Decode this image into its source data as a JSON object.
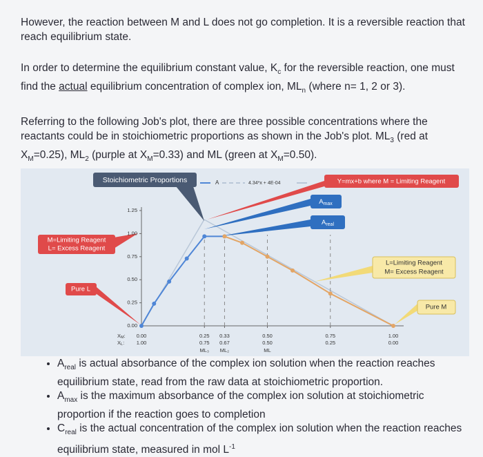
{
  "paragraphs": [
    [
      "However, the reaction between M and L does not go completion.  It is a reversible reaction that reach equilibrium state."
    ],
    [
      "In order to determine the equilibrium constant value, K",
      "c",
      " for the reversible reaction, one must find the ",
      "actual",
      " equilibrium concentration of complex ion, ML",
      "n",
      " (where n= 1, 2 or 3)."
    ],
    [
      "Referring to the following Job's plot, there are three possible concentrations where the reactants could be in stoichiometric proportions as shown in the Job's plot. ML",
      "3",
      " (red at X",
      "M",
      "=0.25), ML",
      "2",
      " (purple at X",
      "M",
      "=0.33) and ML (green at X",
      "M",
      "=0.50)."
    ]
  ],
  "figure": {
    "stoichiometric_callout": "Stoichiometric Proportions",
    "fit_callout": "Y=mx+b where M = Limiting Reagent",
    "amax_callout": [
      "A",
      "max"
    ],
    "areal_callout": [
      "A",
      "real"
    ],
    "left_callout": [
      "M=Limiting Reagent",
      "L= Excess Reagent"
    ],
    "pure_l": "Pure L",
    "right_callout": [
      "L=Limiting Reagent",
      "M= Excess Reagent"
    ],
    "pure_m": "Pure M",
    "legend": [
      "A",
      "4.34*x + 4E-04"
    ],
    "ylim": [
      0,
      1.25
    ],
    "yticks": [
      {
        "value": 0,
        "label": "0.00"
      },
      {
        "value": 0.25,
        "label": "0.25"
      },
      {
        "value": 0.5,
        "label": "0.50"
      },
      {
        "value": 0.75,
        "label": "0.75"
      },
      {
        "value": 1,
        "label": "1.00"
      },
      {
        "value": 1.25,
        "label": "1.25"
      }
    ],
    "xlim": [
      0,
      1
    ],
    "xm_row_label": [
      "X",
      "M",
      ":"
    ],
    "xl_row_label": [
      "X",
      "L",
      ":"
    ],
    "xticks": [
      {
        "value": 0,
        "label": "0.00"
      },
      {
        "value": 0.25,
        "label": "0.25"
      },
      {
        "value": 0.33,
        "label": "0.33"
      },
      {
        "value": 0.5,
        "label": "0.50"
      },
      {
        "value": 0.75,
        "label": "0.75"
      },
      {
        "value": 1,
        "label": "1.00"
      }
    ],
    "xl_labels": [
      "1.00",
      "0.75",
      "0.67",
      "0.50",
      "0.25",
      "0.00"
    ],
    "species": [
      null,
      "ML₃",
      "ML₂",
      "ML",
      null,
      null
    ],
    "series": [
      {
        "color": "#4f86d6",
        "x": [
          0,
          0.05,
          0.11,
          0.18,
          0.25,
          0.33
        ],
        "values": [
          0,
          0.24,
          0.48,
          0.73,
          0.97,
          0.97
        ]
      },
      {
        "color": "#e3a565",
        "x": [
          0.33,
          0.4,
          0.5,
          0.6,
          0.75,
          1
        ],
        "values": [
          0.97,
          0.9,
          0.75,
          0.6,
          0.35,
          0
        ]
      }
    ]
  },
  "bullets": [
    [
      "A",
      "real",
      " is actual absorbance of the complex ion solution when the reaction reaches equilibrium state, read from the raw data at stoichiometric proportion."
    ],
    [
      "A",
      "max",
      " is the maximum absorbance of the complex ion solution at stoichiometric proportion if the reaction goes to completion"
    ],
    [
      "C",
      "real",
      " is the actual concentration of the complex ion solution when the reaction reaches equilibrium state, measured in mol L",
      "-1"
    ]
  ]
}
